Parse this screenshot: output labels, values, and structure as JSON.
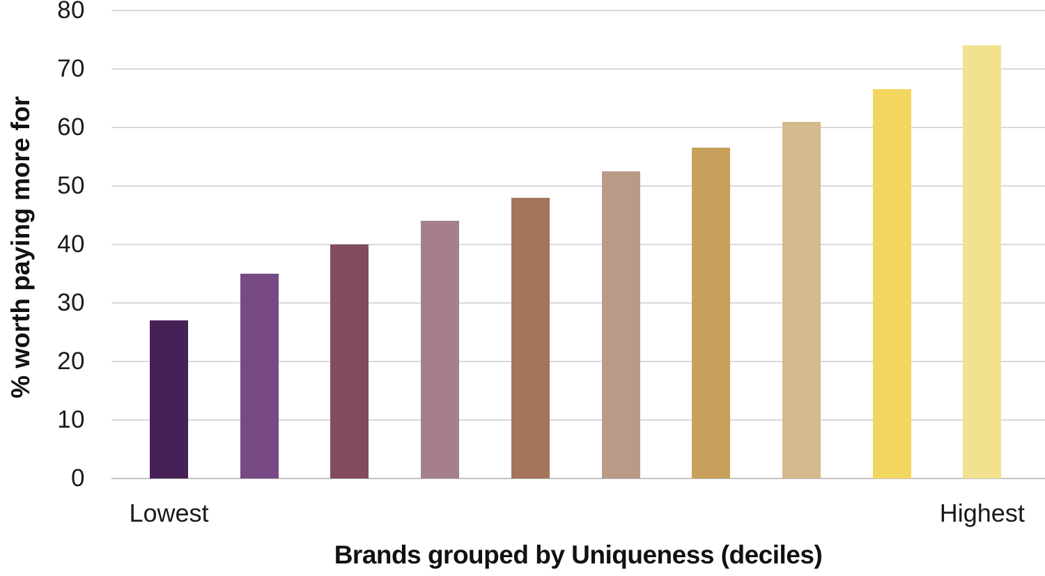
{
  "chart_data": {
    "type": "bar",
    "title": "",
    "xlabel": "Brands grouped by Uniqueness (deciles)",
    "ylabel": "% worth paying more for",
    "categories": [
      "Lowest",
      "",
      "",
      "",
      "",
      "",
      "",
      "",
      "",
      "Highest"
    ],
    "values": [
      27,
      35,
      40,
      44,
      48,
      52.5,
      56.5,
      61,
      66.5,
      74
    ],
    "bar_colors": [
      "#452157",
      "#774a85",
      "#814d5d",
      "#a5808c",
      "#a3755b",
      "#b89a87",
      "#c7a05c",
      "#d3b98b",
      "#f3d65e",
      "#f2e28f"
    ],
    "yticks": [
      0,
      10,
      20,
      30,
      40,
      50,
      60,
      70,
      80
    ],
    "ylim": [
      0,
      80
    ],
    "grid": true,
    "legend": false,
    "legend_position": "none",
    "gridline_color": "#d9d9d9",
    "baseline_color": "#c3c3c3",
    "background_color": "#ffffff",
    "text_color": "#1a1a1a"
  }
}
